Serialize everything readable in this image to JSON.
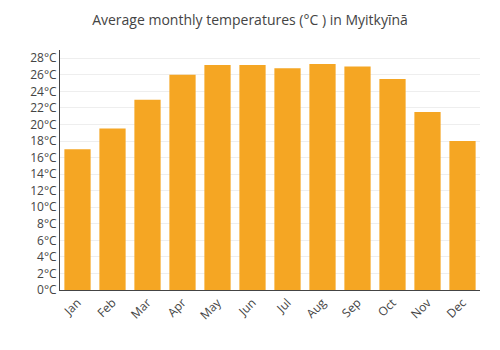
{
  "chart_data": {
    "type": "bar",
    "title": "Average monthly temperatures (°C ) in Myitkyīnā",
    "categories": [
      "Jan",
      "Feb",
      "Mar",
      "Apr",
      "May",
      "Jun",
      "Jul",
      "Aug",
      "Sep",
      "Oct",
      "Nov",
      "Dec"
    ],
    "values": [
      17.0,
      19.5,
      23.0,
      26.0,
      27.2,
      27.2,
      26.8,
      27.3,
      27.0,
      25.5,
      21.5,
      18.0
    ],
    "color": "#F5A623",
    "ylim": [
      0,
      29
    ],
    "yticks": [
      {
        "value": 0,
        "label": "0°C"
      },
      {
        "value": 2,
        "label": "2°C"
      },
      {
        "value": 4,
        "label": "4°C"
      },
      {
        "value": 6,
        "label": "6°C"
      },
      {
        "value": 8,
        "label": "8°C"
      },
      {
        "value": 10,
        "label": "10°C"
      },
      {
        "value": 12,
        "label": "12°C"
      },
      {
        "value": 14,
        "label": "14°C"
      },
      {
        "value": 16,
        "label": "16°C"
      },
      {
        "value": 18,
        "label": "18°C"
      },
      {
        "value": 20,
        "label": "20°C"
      },
      {
        "value": 22,
        "label": "22°C"
      },
      {
        "value": 24,
        "label": "24°C"
      },
      {
        "value": 26,
        "label": "26°C"
      },
      {
        "value": 28,
        "label": "28°C"
      }
    ],
    "grid": true
  }
}
